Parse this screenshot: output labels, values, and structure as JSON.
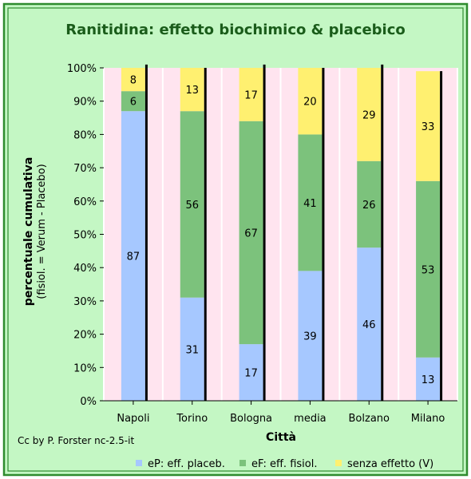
{
  "chart_data": {
    "type": "bar",
    "stacked": true,
    "title": "Ranitidina: effetto biochimico & placebico",
    "xlabel": "Città",
    "ylabel": "percentuale cumulativa",
    "ylabel_sub": "(fisiol. = Verum - Placebo)",
    "categories": [
      "Napoli",
      "Torino",
      "Bologna",
      "media",
      "Bolzano",
      "Milano"
    ],
    "series": [
      {
        "name": "eP: eff. placeb.",
        "color": "#a6c8ff",
        "values": [
          87,
          31,
          17,
          39,
          46,
          13
        ]
      },
      {
        "name": "eF: eff. fisiol.",
        "color": "#7cc27c",
        "values": [
          6,
          56,
          67,
          41,
          26,
          53
        ]
      },
      {
        "name": "senza effetto (V)",
        "color": "#fff070",
        "values": [
          8,
          13,
          17,
          20,
          29,
          33
        ]
      }
    ],
    "ylim": [
      0,
      100
    ],
    "y_ticks": [
      "0%",
      "10%",
      "20%",
      "30%",
      "40%",
      "50%",
      "60%",
      "70%",
      "80%",
      "90%",
      "100%"
    ],
    "grid": false,
    "legend_position": "bottom-right",
    "colors": {
      "page_bg": "#c4f7c4",
      "border": "#2e8b2e",
      "plot_bg": "#ffe4ef",
      "title": "#1a5c1a"
    }
  },
  "credit": "Cc by P. Forster nc-2.5-it"
}
